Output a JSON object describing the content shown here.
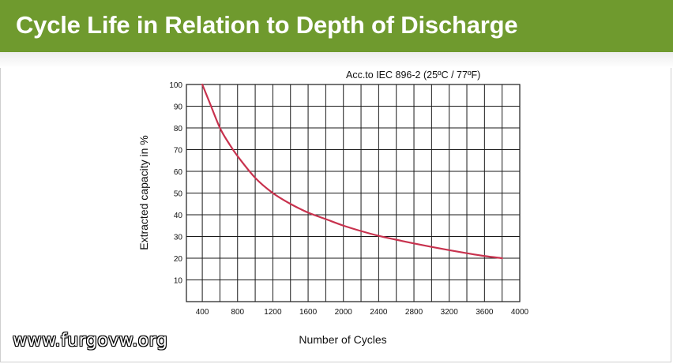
{
  "header": {
    "title": "Cycle Life in Relation to Depth of Discharge"
  },
  "watermark": "www.furgovw.org",
  "colors": {
    "header_bg": "#6f9a2e",
    "curve": "#c8324e",
    "grid": "#1a1a1a"
  },
  "chart_data": {
    "type": "line",
    "title": "",
    "annotation": "Acc.to IEC 896-2 (25ºC / 77ºF)",
    "xlabel": "Number of Cycles",
    "ylabel": "Extracted capacity in %",
    "xlim": [
      220,
      4000
    ],
    "ylim": [
      0,
      100
    ],
    "x_ticks": [
      400,
      800,
      1200,
      1600,
      2000,
      2400,
      2800,
      3200,
      3600,
      4000
    ],
    "x_tick_labels": [
      "400",
      "800",
      "1200",
      "1600",
      "2000",
      "2400",
      "2800",
      "3200",
      "3600",
      "4000"
    ],
    "y_ticks": [
      10,
      20,
      30,
      40,
      50,
      60,
      70,
      80,
      90,
      100
    ],
    "y_tick_labels": [
      "10",
      "20",
      "30",
      "40",
      "50",
      "60",
      "70",
      "80",
      "90",
      "100"
    ],
    "grid": true,
    "series": [
      {
        "x": [
          400,
          480,
          600,
          700,
          800,
          1000,
          1200,
          1400,
          1600,
          1800,
          2000,
          2200,
          2400,
          2600,
          2800,
          3000,
          3200,
          3400,
          3600,
          3800
        ],
        "y": [
          100,
          92,
          80,
          73,
          67,
          57,
          50,
          45,
          41,
          38,
          35,
          32.5,
          30.3,
          28.5,
          26.8,
          25.2,
          23.7,
          22.3,
          21,
          20
        ]
      }
    ]
  }
}
